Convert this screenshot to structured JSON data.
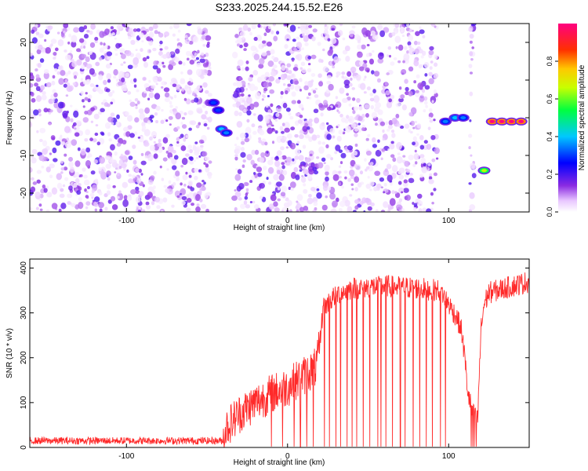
{
  "figure_title": "S233.2025.244.15.52.E26",
  "chart_data": [
    {
      "type": "heatmap",
      "title": "S233.2025.244.15.52.E26",
      "xlabel": "Height of straight line (km)",
      "ylabel": "Frequency (Hz)",
      "xlim": [
        -160,
        150
      ],
      "ylim": [
        -25,
        25
      ],
      "xticks": [
        -100,
        0,
        100
      ],
      "xtick_labels": [
        "-100",
        "0",
        "100"
      ],
      "yticks": [
        -20,
        -10,
        0,
        10,
        20
      ],
      "ytick_labels": [
        "-20",
        "-10",
        "0",
        "10",
        "20"
      ],
      "colorbar": {
        "label": "Normalized spectral amplitude",
        "range": [
          0,
          1
        ],
        "ticks": [
          0.0,
          0.2,
          0.4,
          0.6,
          0.8
        ],
        "tick_labels": [
          "0.0",
          "0.2",
          "0.4",
          "0.6",
          "0.8"
        ]
      },
      "background_noise": {
        "x_ranges": [
          [
            -160,
            -48
          ],
          [
            -33,
            93
          ],
          [
            113,
            116
          ]
        ],
        "amplitude_range": [
          0.02,
          0.2
        ]
      },
      "features": [
        {
          "x": -46,
          "y": 4,
          "amplitude": 0.3
        },
        {
          "x": -43,
          "y": 2,
          "amplitude": 0.3
        },
        {
          "x": -41,
          "y": -3,
          "amplitude": 0.4
        },
        {
          "x": -38,
          "y": -4,
          "amplitude": 0.35
        },
        {
          "x": 98,
          "y": -1,
          "amplitude": 0.35
        },
        {
          "x": 104,
          "y": 0,
          "amplitude": 0.4
        },
        {
          "x": 109,
          "y": 0,
          "amplitude": 0.35
        },
        {
          "x": 122,
          "y": -14,
          "amplitude": 0.65
        },
        {
          "x": 127,
          "y": -1,
          "amplitude": 1.0
        },
        {
          "x": 133,
          "y": -1,
          "amplitude": 1.0
        },
        {
          "x": 139,
          "y": -1,
          "amplitude": 1.0
        },
        {
          "x": 145,
          "y": -1,
          "amplitude": 1.0
        }
      ]
    },
    {
      "type": "line",
      "title": "",
      "xlabel": "Height of straight line (km)",
      "ylabel": "SNR (10 * v/v)",
      "xlim": [
        -160,
        150
      ],
      "ylim": [
        0,
        420
      ],
      "xticks": [
        -100,
        0,
        100
      ],
      "xtick_labels": [
        "-100",
        "0",
        "100"
      ],
      "yticks": [
        0,
        100,
        200,
        300,
        400
      ],
      "ytick_labels": [
        "0",
        "100",
        "200",
        "300",
        "400"
      ],
      "color": "#ff2a2a",
      "trend": {
        "x": [
          -160,
          -40,
          -38,
          -30,
          -20,
          -10,
          0,
          10,
          18,
          20,
          22,
          30,
          40,
          60,
          80,
          95,
          100,
          105,
          108,
          110,
          112,
          115,
          118,
          120,
          122,
          125,
          150
        ],
        "y": [
          15,
          15,
          45,
          75,
          100,
          120,
          135,
          160,
          180,
          230,
          310,
          340,
          355,
          360,
          355,
          350,
          320,
          290,
          260,
          200,
          120,
          75,
          60,
          260,
          320,
          345,
          370
        ]
      },
      "noise_amplitude": [
        {
          "x_from": -160,
          "x_to": -40,
          "amp": 8
        },
        {
          "x_from": -40,
          "x_to": 20,
          "amp": 45
        },
        {
          "x_from": 20,
          "x_to": 150,
          "amp": 25
        }
      ],
      "dropouts_to_zero_x": [
        -10,
        -3,
        4,
        8,
        12,
        16,
        23,
        26,
        30,
        33,
        37,
        40,
        43,
        47,
        51,
        56,
        58,
        61,
        65,
        70,
        73,
        78,
        82,
        86,
        90,
        95,
        98,
        114,
        115,
        116,
        117
      ]
    }
  ]
}
